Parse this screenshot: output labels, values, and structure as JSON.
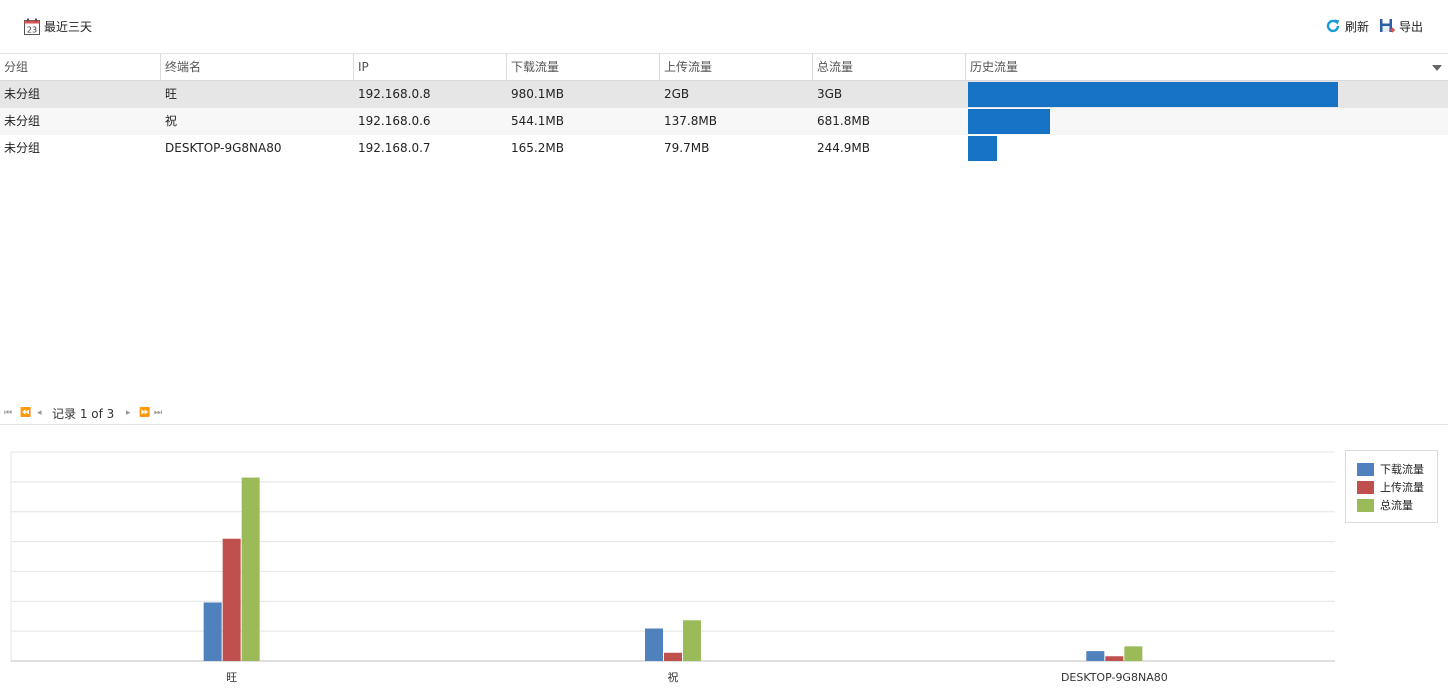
{
  "toolbar": {
    "range_label": "最近三天",
    "range_icon_day": "23",
    "refresh_label": "刷新",
    "export_label": "导出"
  },
  "grid": {
    "columns": [
      "分组",
      "终端名",
      "IP",
      "下载流量",
      "上传流量",
      "总流量",
      "历史流量"
    ],
    "rows": [
      {
        "group": "未分组",
        "name": "旺",
        "ip": "192.168.0.8",
        "download": "980.1MB",
        "upload": "2GB",
        "total": "3GB",
        "history_fraction": 1.0
      },
      {
        "group": "未分组",
        "name": "祝",
        "ip": "192.168.0.6",
        "download": "544.1MB",
        "upload": "137.8MB",
        "total": "681.8MB",
        "history_fraction": 0.222
      },
      {
        "group": "未分组",
        "name": "DESKTOP-9G8NA80",
        "ip": "192.168.0.7",
        "download": "165.2MB",
        "upload": "79.7MB",
        "total": "244.9MB",
        "history_fraction": 0.078
      }
    ]
  },
  "pager": {
    "text": "记录 1 of 3"
  },
  "chart_data": {
    "type": "bar",
    "categories": [
      "旺",
      "祝",
      "DESKTOP-9G8NA80"
    ],
    "series": [
      {
        "name": "下载流量",
        "values": [
          980.1,
          544.1,
          165.2
        ],
        "color": "#4f81bd"
      },
      {
        "name": "上传流量",
        "values": [
          2048,
          137.8,
          79.7
        ],
        "color": "#c0504d"
      },
      {
        "name": "总流量",
        "values": [
          3072,
          681.8,
          244.9
        ],
        "color": "#9bbb59"
      }
    ],
    "ylim": [
      0,
      3500
    ],
    "grid": true,
    "legend_position": "right"
  }
}
